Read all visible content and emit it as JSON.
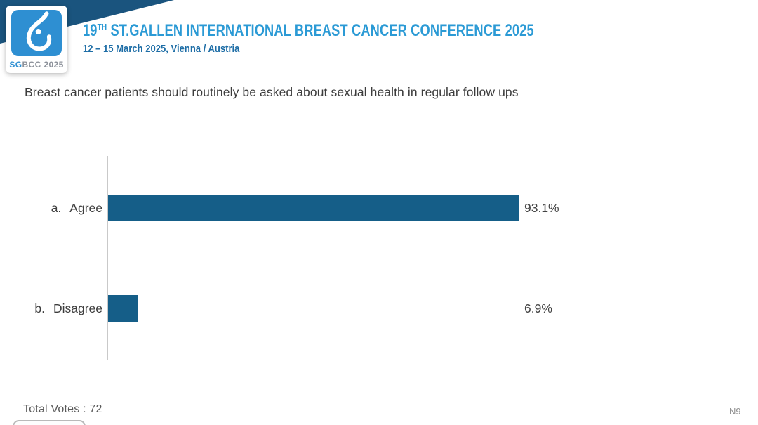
{
  "header": {
    "logo": {
      "text_sg": "SG",
      "text_rest": "BCC 2025"
    },
    "title_num": "19",
    "title_sup": "TH",
    "title_main": " ST.GALLEN INTERNATIONAL BREAST CANCER CONFERENCE 2025",
    "subtitle": "12 – 15 March 2025, Vienna / Austria"
  },
  "question": "Breast cancer patients should routinely be asked about sexual health in regular follow ups",
  "chart_data": {
    "type": "bar",
    "orientation": "horizontal",
    "title": "Breast cancer patients should routinely be asked about sexual health in regular follow ups",
    "categories": [
      "a. Agree",
      "b. Disagree"
    ],
    "values": [
      93.1,
      6.9
    ],
    "rows": [
      {
        "prefix": "a.",
        "label": "Agree",
        "value": 93.1,
        "value_label": "93.1%"
      },
      {
        "prefix": "b.",
        "label": "Disagree",
        "value": 6.9,
        "value_label": "6.9%"
      }
    ],
    "xlim": [
      0,
      100
    ],
    "grid": false,
    "legend": false,
    "bar_color": "#155E88",
    "axis_color": "#C9C9C9",
    "total_votes": 72
  },
  "footer": {
    "total_votes": "Total Votes : 72",
    "slide_code": "N9"
  },
  "colors": {
    "band_navy": "#1A547E",
    "logo_blue": "#2E8FD2",
    "title_blue": "#2B9AD5",
    "subtitle_blue": "#1D6DA6",
    "bar_blue": "#155E88",
    "text_dark": "#3C3C3C",
    "text_gray": "#595959"
  }
}
